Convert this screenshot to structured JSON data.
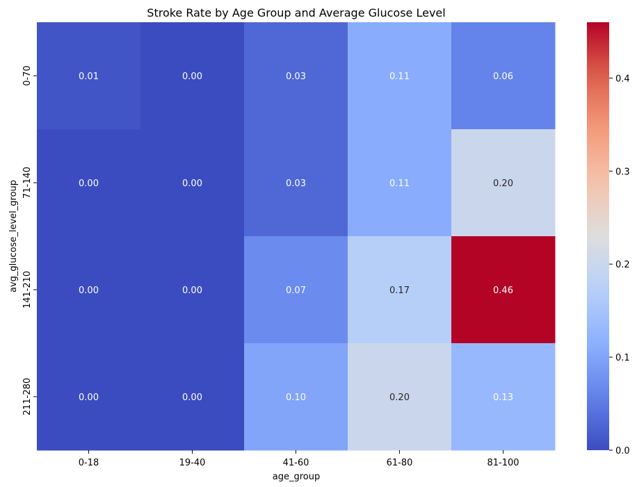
{
  "chart_data": {
    "type": "heatmap",
    "title": "Stroke Rate by Age Group and Average Glucose Level",
    "xlabel": "age_group",
    "ylabel": "avg_glucose_level_group",
    "x_categories": [
      "0-18",
      "19-40",
      "41-60",
      "61-80",
      "81-100"
    ],
    "y_categories": [
      "0-70",
      "71-140",
      "141-210",
      "211-280"
    ],
    "values": [
      [
        0.01,
        0.0,
        0.03,
        0.11,
        0.06
      ],
      [
        0.0,
        0.0,
        0.03,
        0.11,
        0.2
      ],
      [
        0.0,
        0.0,
        0.07,
        0.17,
        0.46
      ],
      [
        0.0,
        0.0,
        0.1,
        0.2,
        0.13
      ]
    ],
    "value_labels": [
      [
        "0.01",
        "0.00",
        "0.03",
        "0.11",
        "0.06"
      ],
      [
        "0.00",
        "0.00",
        "0.03",
        "0.11",
        "0.20"
      ],
      [
        "0.00",
        "0.00",
        "0.07",
        "0.17",
        "0.46"
      ],
      [
        "0.00",
        "0.00",
        "0.10",
        "0.20",
        "0.13"
      ]
    ],
    "colormap": "coolwarm",
    "vmin": 0,
    "vmax": 0.46,
    "colorbar_ticks": [
      0.0,
      0.1,
      0.2,
      0.3,
      0.4
    ],
    "colorbar_tick_labels": [
      "0.0",
      "0.1",
      "0.2",
      "0.3",
      "0.4"
    ],
    "grid": false
  }
}
